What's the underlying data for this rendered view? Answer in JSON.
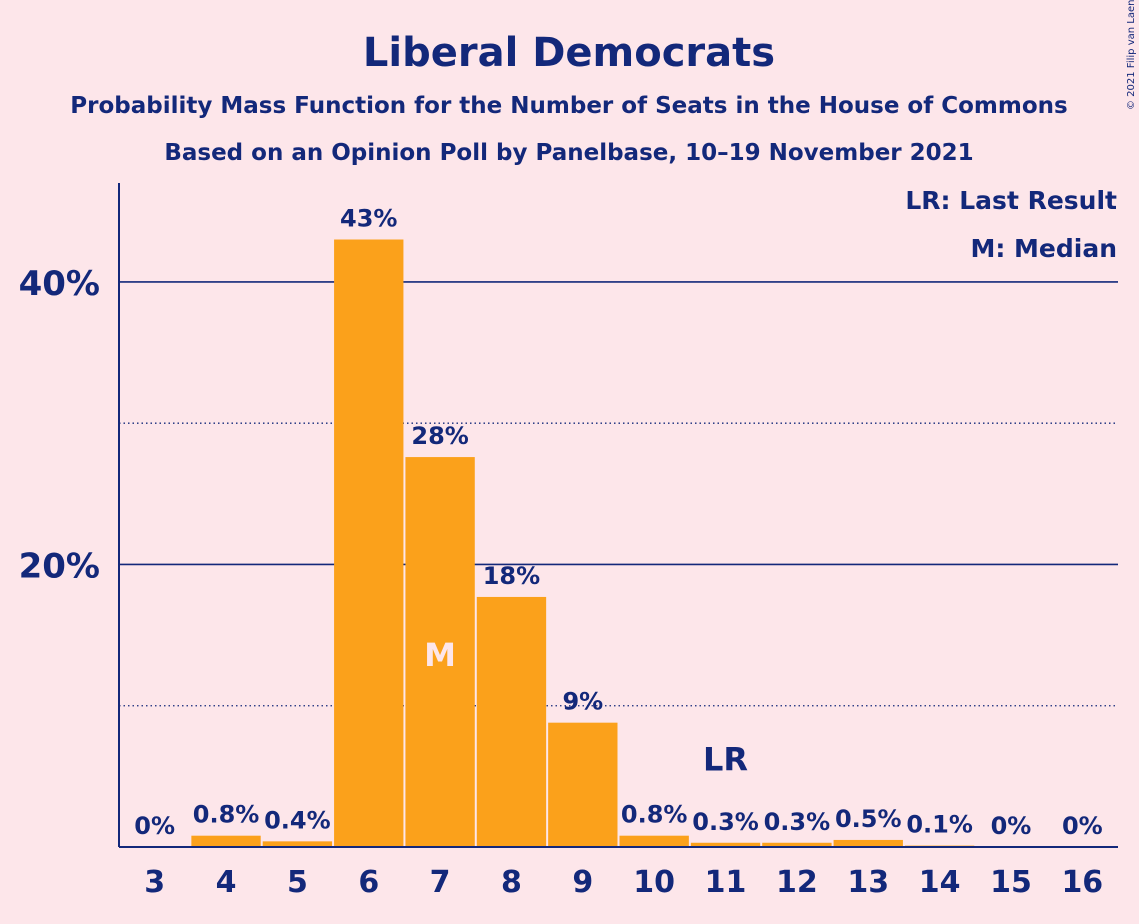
{
  "copyright": "© 2021 Filip van Laenen",
  "chart_data": {
    "type": "bar",
    "title": "Liberal Democrats",
    "subtitle": "Probability Mass Function for the Number of Seats in the House of Commons",
    "subtitle2": "Based on an Opinion Poll by Panelbase, 10–19 November 2021",
    "categories": [
      "3",
      "4",
      "5",
      "6",
      "7",
      "8",
      "9",
      "10",
      "11",
      "12",
      "13",
      "14",
      "15",
      "16"
    ],
    "values": [
      0,
      0.8,
      0.4,
      43,
      27.6,
      17.7,
      8.8,
      0.8,
      0.3,
      0.3,
      0.5,
      0.1,
      0,
      0
    ],
    "labels": [
      "0%",
      "0.8%",
      "0.4%",
      "43%",
      "28%",
      "18%",
      "9%",
      "0.8%",
      "0.3%",
      "0.3%",
      "0.5%",
      "0.1%",
      "0%",
      "0%"
    ],
    "yticks": [
      {
        "value": 20,
        "label": "20%"
      },
      {
        "value": 40,
        "label": "40%"
      }
    ],
    "minor_gridlines": [
      10,
      30
    ],
    "ylim": [
      0,
      47
    ],
    "median": {
      "category": "7",
      "label": "M"
    },
    "last_result": {
      "category": "11",
      "label": "LR",
      "value": 6.2
    },
    "legend": [
      "LR: Last Result",
      "M: Median"
    ],
    "legend_position": "top-right",
    "colors": {
      "bar": "#fba11b",
      "text": "#13287a",
      "background": "#fde6ea",
      "median_text": "#fde6ea"
    }
  }
}
